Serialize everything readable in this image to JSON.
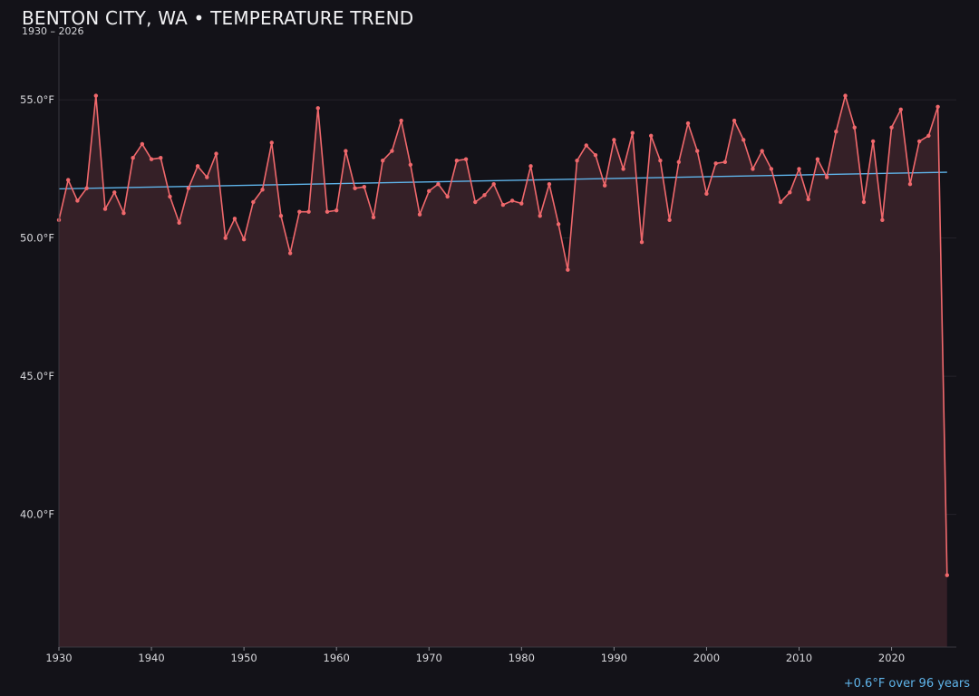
{
  "header": {
    "title": "BENTON CITY, WA • TEMPERATURE TREND",
    "subtitle": "1930 – 2026",
    "trend_note": "+0.6°F over 96 years"
  },
  "colors": {
    "background": "#131218",
    "series_line": "#f0686c",
    "series_fill": "#352027",
    "trend_line": "#5fb4ea",
    "grid": "#24222a",
    "axis": "#3a3840"
  },
  "chart_data": {
    "type": "area",
    "title": "BENTON CITY, WA • TEMPERATURE TREND",
    "subtitle": "1930 – 2026",
    "xlabel": "",
    "ylabel": "",
    "xlim": [
      1930,
      2027
    ],
    "ylim": [
      35.2,
      57.3
    ],
    "grid": true,
    "x_ticks": [
      1930,
      1940,
      1950,
      1960,
      1970,
      1980,
      1990,
      2000,
      2010,
      2020
    ],
    "x_tick_labels": [
      "1930",
      "1940",
      "1950",
      "1960",
      "1970",
      "1980",
      "1990",
      "2000",
      "2010",
      "2020"
    ],
    "y_ticks": [
      40,
      45,
      50,
      55
    ],
    "y_tick_labels": [
      "40.0°F",
      "45.0°F",
      "50.0°F",
      "55.0°F"
    ],
    "x": [
      1930,
      1931,
      1932,
      1933,
      1934,
      1935,
      1936,
      1937,
      1938,
      1939,
      1940,
      1941,
      1942,
      1943,
      1944,
      1945,
      1946,
      1947,
      1948,
      1949,
      1950,
      1951,
      1952,
      1953,
      1954,
      1955,
      1956,
      1957,
      1958,
      1959,
      1960,
      1961,
      1962,
      1963,
      1964,
      1965,
      1966,
      1967,
      1968,
      1969,
      1970,
      1971,
      1972,
      1973,
      1974,
      1975,
      1976,
      1977,
      1978,
      1979,
      1980,
      1981,
      1982,
      1983,
      1984,
      1985,
      1986,
      1987,
      1988,
      1989,
      1990,
      1991,
      1992,
      1993,
      1994,
      1995,
      1996,
      1997,
      1998,
      1999,
      2000,
      2001,
      2002,
      2003,
      2004,
      2005,
      2006,
      2007,
      2008,
      2009,
      2010,
      2011,
      2012,
      2013,
      2014,
      2015,
      2016,
      2017,
      2018,
      2019,
      2020,
      2021,
      2022,
      2023,
      2024,
      2025,
      2026
    ],
    "y": [
      50.65,
      52.1,
      51.35,
      51.8,
      55.15,
      51.05,
      51.65,
      50.9,
      52.9,
      53.4,
      52.85,
      52.9,
      51.5,
      50.55,
      51.8,
      52.6,
      52.2,
      53.05,
      50.0,
      50.7,
      49.95,
      51.3,
      51.75,
      53.45,
      50.8,
      49.45,
      50.95,
      50.95,
      54.7,
      50.95,
      51.0,
      53.15,
      51.8,
      51.85,
      50.75,
      52.8,
      53.15,
      54.25,
      52.65,
      50.85,
      51.7,
      51.95,
      51.5,
      52.8,
      52.85,
      51.3,
      51.55,
      51.95,
      51.2,
      51.35,
      51.25,
      52.6,
      50.8,
      51.95,
      50.5,
      48.85,
      52.8,
      53.35,
      53.0,
      51.9,
      53.55,
      52.5,
      53.8,
      49.85,
      53.7,
      52.8,
      50.65,
      52.75,
      54.15,
      53.15,
      51.6,
      52.7,
      52.75,
      54.25,
      53.55,
      52.5,
      53.15,
      52.5,
      51.3,
      51.65,
      52.5,
      51.4,
      52.85,
      52.2,
      53.85,
      55.15,
      54.0,
      51.3,
      53.5,
      50.65,
      54.0,
      54.65,
      51.95,
      53.5,
      53.7,
      54.75,
      37.8
    ],
    "series": [
      {
        "name": "",
        "type": "line"
      },
      {
        "name": "",
        "type": "trend",
        "x": [
          1930,
          2026
        ],
        "y": [
          51.78,
          52.38
        ]
      }
    ]
  }
}
